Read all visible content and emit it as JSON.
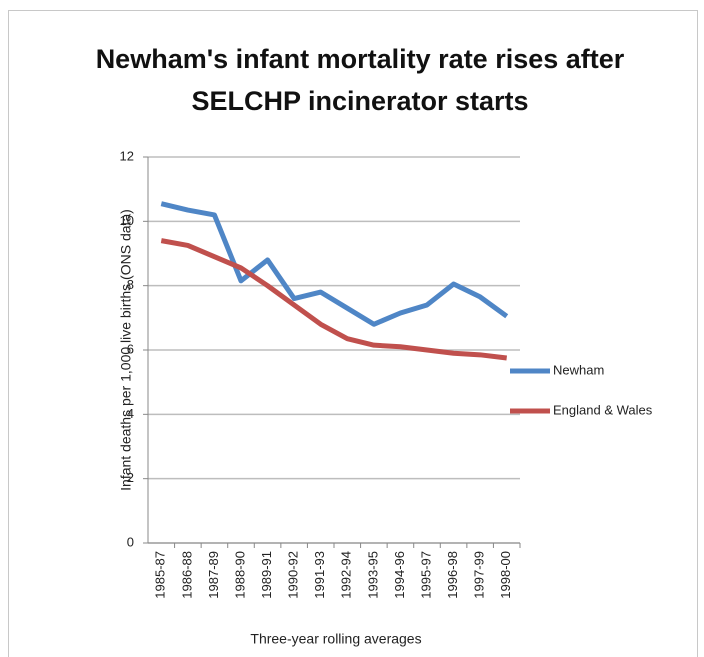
{
  "chart_data": {
    "type": "line",
    "title": "Newham's infant mortality rate rises after SELCHP incinerator starts",
    "x_label": "Three-year rolling averages",
    "y_label": "Infant deaths per 1,000 live births (ONS data)",
    "categories": [
      "1985-87",
      "1986-88",
      "1987-89",
      "1988-90",
      "1989-91",
      "1990-92",
      "1991-93",
      "1992-94",
      "1993-95",
      "1994-96",
      "1995-97",
      "1996-98",
      "1997-99",
      "1998-00"
    ],
    "series": [
      {
        "name": "Newham",
        "color": "#4f86c6",
        "values": [
          10.55,
          10.35,
          10.2,
          8.15,
          8.8,
          7.6,
          7.8,
          7.3,
          6.8,
          7.15,
          7.4,
          8.05,
          7.65,
          7.05
        ]
      },
      {
        "name": "England & Wales",
        "color": "#c0504d",
        "values": [
          9.4,
          9.25,
          8.9,
          8.55,
          8.0,
          7.4,
          6.8,
          6.35,
          6.15,
          6.1,
          6.0,
          5.9,
          5.85,
          5.75
        ]
      }
    ],
    "ylim": [
      0,
      12
    ],
    "yticks": [
      0,
      2,
      4,
      6,
      8,
      10,
      12
    ],
    "grid": true,
    "legend": "right"
  }
}
